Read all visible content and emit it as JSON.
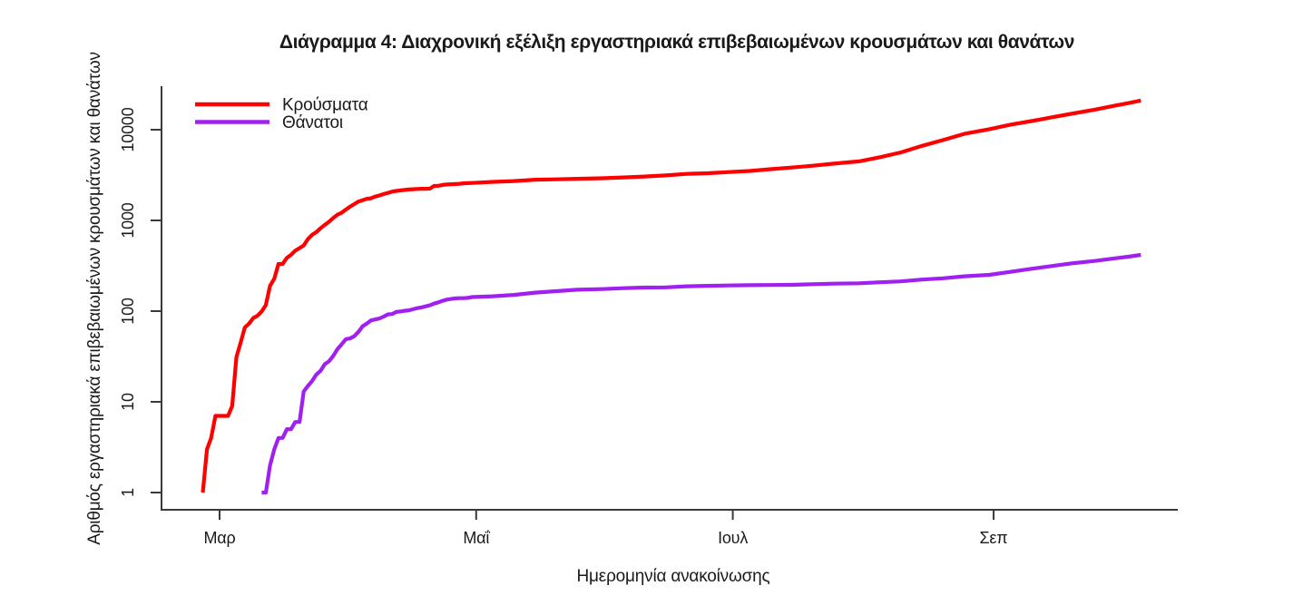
{
  "page": {
    "background": "#ffffff",
    "text_color": "#1a1a1a",
    "axis_color": "#3a3a3a"
  },
  "chart_data": {
    "type": "line",
    "title": "Διάγραμμα 4: Διαχρονική εξέλιξη εργαστηριακά επιβεβαιωμένων κρουσμάτων και θανάτων",
    "xlabel": "Ημερομηνία ανακοίνωσης",
    "ylabel": "Αριθμός εργαστηριακά επιβεβαιωμένων κρουσμάτων και θανάτων",
    "yscale": "log",
    "ylim": [
      1,
      30000
    ],
    "yticks": [
      "1",
      "10",
      "100",
      "1000",
      "10000"
    ],
    "xticks": [
      {
        "label": "Μαρ",
        "x": 4
      },
      {
        "label": "Μαΐ",
        "x": 65
      },
      {
        "label": "Ιουλ",
        "x": 126
      },
      {
        "label": "Σεπ",
        "x": 188
      }
    ],
    "xlim": [
      0,
      232
    ],
    "grid": false,
    "legend_position": "top-left",
    "series": [
      {
        "key": "cases",
        "name": "Κρούσματα",
        "color": "#FF0000",
        "points": [
          [
            0,
            1
          ],
          [
            1,
            3
          ],
          [
            2,
            4
          ],
          [
            3,
            7
          ],
          [
            4,
            7
          ],
          [
            5,
            7
          ],
          [
            6,
            7
          ],
          [
            7,
            9
          ],
          [
            8,
            31
          ],
          [
            9,
            45
          ],
          [
            10,
            66
          ],
          [
            11,
            73
          ],
          [
            12,
            84
          ],
          [
            13,
            89
          ],
          [
            14,
            99
          ],
          [
            15,
            117
          ],
          [
            16,
            190
          ],
          [
            17,
            228
          ],
          [
            18,
            331
          ],
          [
            19,
            331
          ],
          [
            20,
            387
          ],
          [
            21,
            418
          ],
          [
            22,
            464
          ],
          [
            23,
            495
          ],
          [
            24,
            530
          ],
          [
            25,
            624
          ],
          [
            26,
            695
          ],
          [
            27,
            743
          ],
          [
            28,
            821
          ],
          [
            29,
            892
          ],
          [
            30,
            966
          ],
          [
            31,
            1061
          ],
          [
            32,
            1156
          ],
          [
            33,
            1212
          ],
          [
            34,
            1314
          ],
          [
            35,
            1415
          ],
          [
            36,
            1514
          ],
          [
            37,
            1613
          ],
          [
            38,
            1673
          ],
          [
            39,
            1735
          ],
          [
            40,
            1755
          ],
          [
            41,
            1832
          ],
          [
            42,
            1884
          ],
          [
            43,
            1955
          ],
          [
            44,
            2011
          ],
          [
            45,
            2081
          ],
          [
            46,
            2114
          ],
          [
            47,
            2145
          ],
          [
            48,
            2170
          ],
          [
            49,
            2192
          ],
          [
            50,
            2207
          ],
          [
            51,
            2224
          ],
          [
            52,
            2235
          ],
          [
            53,
            2235
          ],
          [
            54,
            2245
          ],
          [
            55,
            2401
          ],
          [
            56,
            2408
          ],
          [
            57,
            2463
          ],
          [
            58,
            2490
          ],
          [
            59,
            2506
          ],
          [
            60,
            2517
          ],
          [
            61,
            2534
          ],
          [
            62,
            2566
          ],
          [
            63,
            2576
          ],
          [
            64,
            2591
          ],
          [
            69,
            2663
          ],
          [
            74,
            2716
          ],
          [
            79,
            2810
          ],
          [
            84,
            2840
          ],
          [
            89,
            2878
          ],
          [
            95,
            2915
          ],
          [
            100,
            2980
          ],
          [
            105,
            3049
          ],
          [
            110,
            3134
          ],
          [
            115,
            3256
          ],
          [
            120,
            3310
          ],
          [
            125,
            3409
          ],
          [
            130,
            3511
          ],
          [
            135,
            3672
          ],
          [
            140,
            3826
          ],
          [
            145,
            4007
          ],
          [
            150,
            4227
          ],
          [
            156,
            4477
          ],
          [
            161,
            4974
          ],
          [
            166,
            5623
          ],
          [
            171,
            6632
          ],
          [
            176,
            7684
          ],
          [
            181,
            8987
          ],
          [
            187,
            10134
          ],
          [
            192,
            11386
          ],
          [
            197,
            12452
          ],
          [
            202,
            13730
          ],
          [
            207,
            15142
          ],
          [
            212,
            16627
          ],
          [
            217,
            18475
          ],
          [
            220,
            19613
          ],
          [
            223,
            21000
          ]
        ]
      },
      {
        "key": "deaths",
        "name": "Θάνατοι",
        "color": "#A020F0",
        "points": [
          [
            14,
            1
          ],
          [
            15,
            1
          ],
          [
            16,
            2
          ],
          [
            17,
            3
          ],
          [
            18,
            4
          ],
          [
            19,
            4
          ],
          [
            20,
            5
          ],
          [
            21,
            5
          ],
          [
            22,
            6
          ],
          [
            23,
            6
          ],
          [
            24,
            13
          ],
          [
            25,
            15
          ],
          [
            26,
            17
          ],
          [
            27,
            20
          ],
          [
            28,
            22
          ],
          [
            29,
            26
          ],
          [
            30,
            28
          ],
          [
            31,
            32
          ],
          [
            32,
            38
          ],
          [
            33,
            43
          ],
          [
            34,
            49
          ],
          [
            35,
            50
          ],
          [
            36,
            53
          ],
          [
            37,
            59
          ],
          [
            38,
            68
          ],
          [
            39,
            73
          ],
          [
            40,
            79
          ],
          [
            41,
            81
          ],
          [
            42,
            83
          ],
          [
            43,
            87
          ],
          [
            44,
            92
          ],
          [
            45,
            93
          ],
          [
            46,
            98
          ],
          [
            47,
            99
          ],
          [
            48,
            101
          ],
          [
            49,
            102
          ],
          [
            50,
            105
          ],
          [
            51,
            108
          ],
          [
            52,
            110
          ],
          [
            53,
            113
          ],
          [
            54,
            116
          ],
          [
            55,
            121
          ],
          [
            56,
            125
          ],
          [
            57,
            130
          ],
          [
            58,
            134
          ],
          [
            59,
            136
          ],
          [
            60,
            138
          ],
          [
            61,
            139
          ],
          [
            62,
            139
          ],
          [
            63,
            140
          ],
          [
            64,
            143
          ],
          [
            69,
            146
          ],
          [
            74,
            151
          ],
          [
            79,
            160
          ],
          [
            84,
            166
          ],
          [
            89,
            172
          ],
          [
            95,
            175
          ],
          [
            100,
            179
          ],
          [
            105,
            182
          ],
          [
            110,
            183
          ],
          [
            115,
            188
          ],
          [
            120,
            190
          ],
          [
            125,
            192
          ],
          [
            130,
            193
          ],
          [
            135,
            194
          ],
          [
            140,
            195
          ],
          [
            145,
            198
          ],
          [
            150,
            201
          ],
          [
            156,
            203
          ],
          [
            161,
            208
          ],
          [
            166,
            213
          ],
          [
            171,
            223
          ],
          [
            176,
            230
          ],
          [
            181,
            242
          ],
          [
            187,
            251
          ],
          [
            192,
            271
          ],
          [
            197,
            293
          ],
          [
            202,
            315
          ],
          [
            207,
            338
          ],
          [
            212,
            357
          ],
          [
            217,
            383
          ],
          [
            220,
            398
          ],
          [
            223,
            417
          ]
        ]
      }
    ]
  }
}
